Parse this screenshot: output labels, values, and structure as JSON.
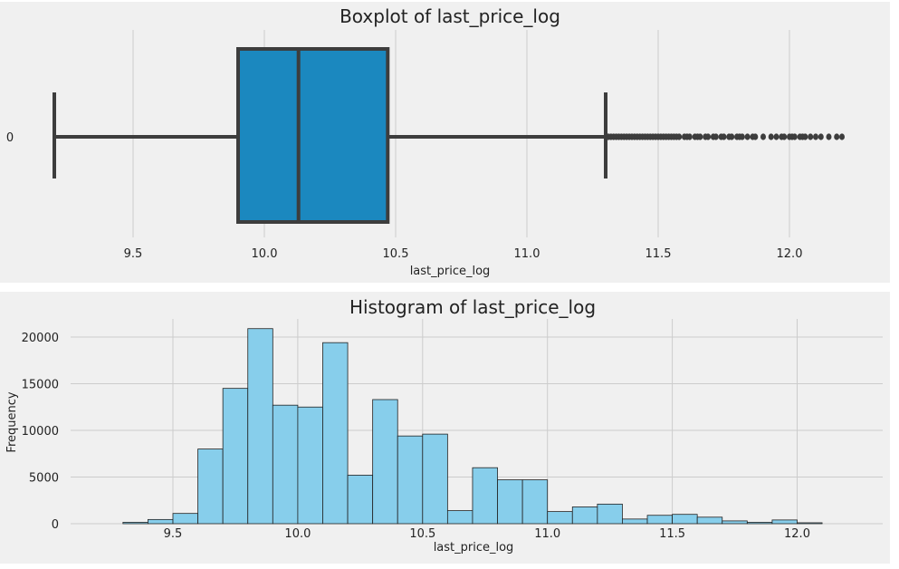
{
  "chart_data": [
    {
      "type": "boxplot",
      "title": "Boxplot of last_price_log",
      "xlabel": "last_price_log",
      "ylabel": "",
      "y_tick_labels": [
        "0"
      ],
      "x_ticks": [
        "9.5",
        "10.0",
        "10.5",
        "11.0",
        "11.5",
        "12.0"
      ],
      "xlim": [
        9.06,
        12.28
      ],
      "grid": true,
      "colors": {
        "box": "#1b88bf",
        "line": "#3d3d3d",
        "background": "#f0f0f0",
        "grid": "#cccccc"
      },
      "stats": {
        "whisker_low": 9.2,
        "q1": 9.9,
        "median": 10.13,
        "q3": 10.47,
        "whisker_high": 11.3
      },
      "outliers_range": [
        11.31,
        12.2
      ],
      "outliers": [
        11.31,
        11.32,
        11.33,
        11.34,
        11.35,
        11.36,
        11.37,
        11.38,
        11.39,
        11.4,
        11.41,
        11.42,
        11.43,
        11.44,
        11.45,
        11.46,
        11.47,
        11.48,
        11.49,
        11.5,
        11.51,
        11.52,
        11.53,
        11.54,
        11.55,
        11.56,
        11.57,
        11.58,
        11.6,
        11.61,
        11.62,
        11.64,
        11.65,
        11.66,
        11.68,
        11.69,
        11.71,
        11.72,
        11.74,
        11.75,
        11.77,
        11.78,
        11.8,
        11.81,
        11.82,
        11.84,
        11.86,
        11.87,
        11.9,
        11.93,
        11.95,
        11.97,
        11.98,
        12.0,
        12.01,
        12.02,
        12.04,
        12.05,
        12.06,
        12.08,
        12.1,
        12.12,
        12.15,
        12.18,
        12.2
      ]
    },
    {
      "type": "bar",
      "title": "Histogram of last_price_log",
      "xlabel": "last_price_log",
      "ylabel": "Frequency",
      "x_ticks": [
        "9.5",
        "10.0",
        "10.5",
        "11.0",
        "11.5",
        "12.0"
      ],
      "y_ticks": [
        "0",
        "5000",
        "10000",
        "15000",
        "20000"
      ],
      "xlim": [
        9.06,
        12.24
      ],
      "ylim": [
        0,
        22000
      ],
      "grid": true,
      "colors": {
        "bar": "#87ceeb",
        "edge": "#222222",
        "background": "#f0f0f0",
        "grid": "#cccccc"
      },
      "bin_start": 9.3,
      "bin_width": 0.1,
      "values": [
        150,
        450,
        1100,
        8000,
        14500,
        20900,
        12700,
        12500,
        19400,
        5200,
        13300,
        9400,
        9600,
        1400,
        6000,
        4700,
        4700,
        1300,
        1800,
        2100,
        500,
        900,
        1000,
        700,
        300,
        150,
        400,
        100
      ]
    }
  ]
}
